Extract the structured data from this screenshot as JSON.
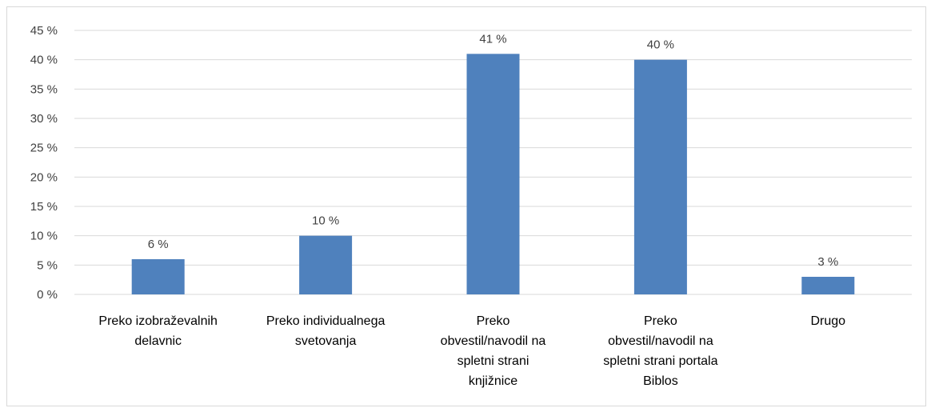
{
  "chart_data": {
    "type": "bar",
    "categories": [
      [
        "Preko izobraževalnih",
        "delavnic"
      ],
      [
        "Preko individualnega",
        "svetovanja"
      ],
      [
        "Preko",
        "obvestil/navodil na",
        "spletni strani",
        "knjižnice"
      ],
      [
        "Preko",
        "obvestil/navodil na",
        "spletni strani portala",
        "Biblos"
      ],
      [
        "Drugo"
      ]
    ],
    "values": [
      6,
      10,
      41,
      40,
      3
    ],
    "data_labels": [
      "6 %",
      "10 %",
      "41 %",
      "40 %",
      "3 %"
    ],
    "y_ticks": [
      0,
      5,
      10,
      15,
      20,
      25,
      30,
      35,
      40,
      45
    ],
    "y_tick_labels": [
      "0 %",
      "5 %",
      "10 %",
      "15 %",
      "20 %",
      "25 %",
      "30 %",
      "35 %",
      "40 %",
      "45 %"
    ],
    "ylim": [
      0,
      45
    ],
    "grid": true,
    "legend": "none",
    "colors": {
      "bar": "#4f81bd",
      "grid": "#d9d9d9"
    }
  }
}
